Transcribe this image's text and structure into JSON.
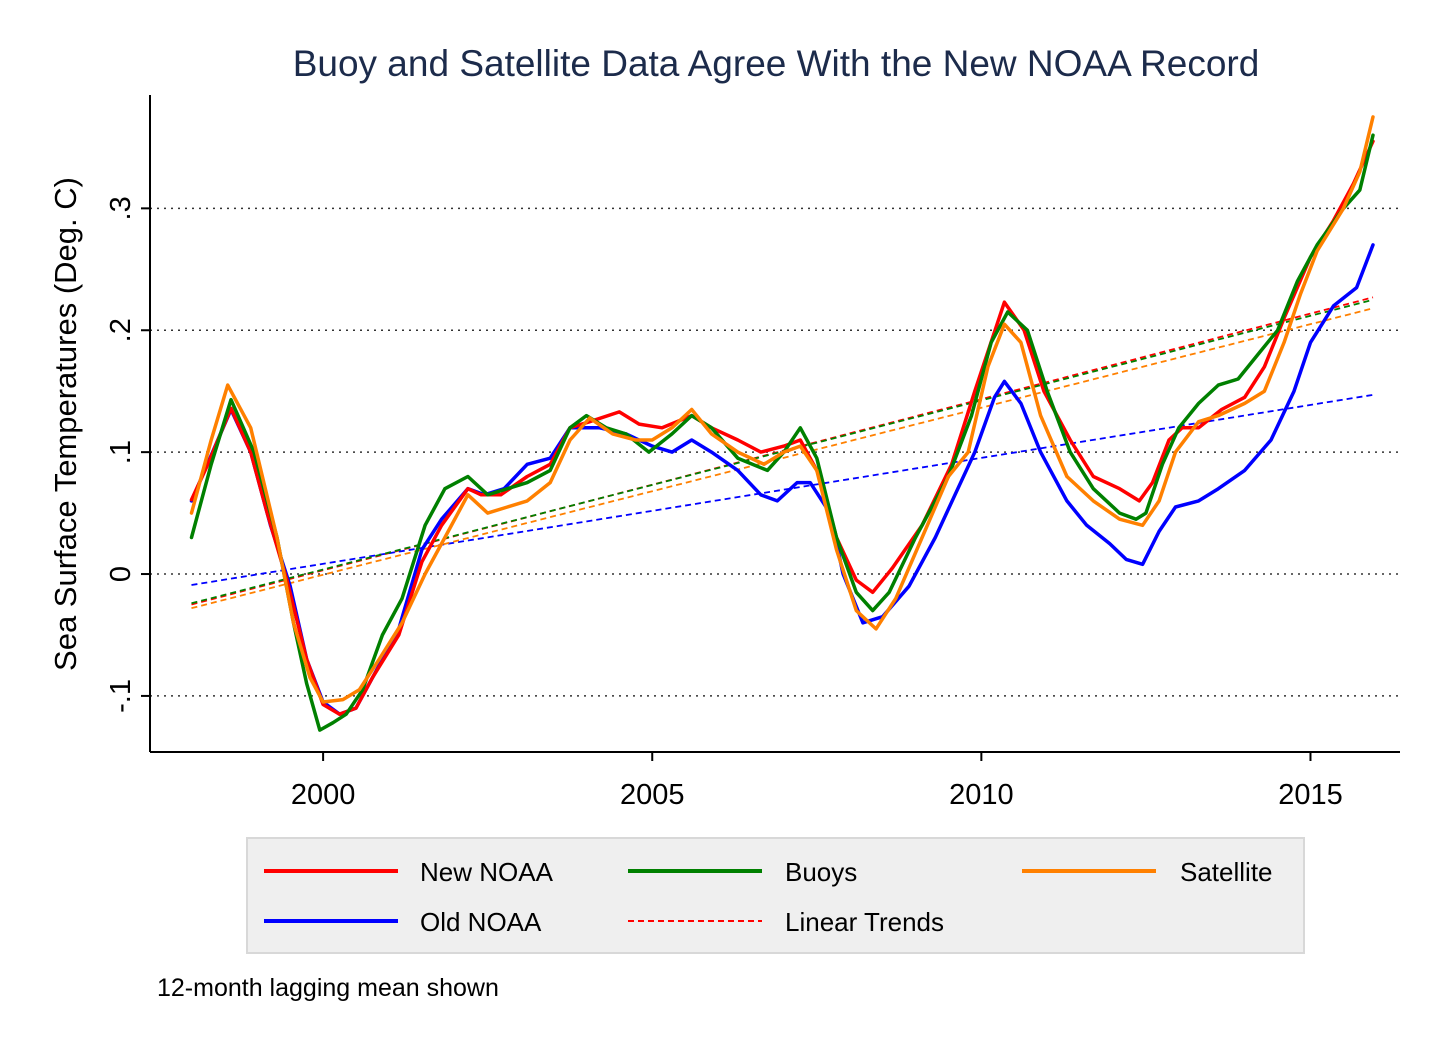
{
  "chart_data": {
    "type": "line",
    "title": "Buoy and Satellite Data Agree With the New NOAA Record",
    "xlabel": "",
    "ylabel": "Sea Surface Temperatures (Deg. C)",
    "note": "12-month lagging mean shown",
    "xlim": [
      1997.37,
      2016.36
    ],
    "ylim": [
      -0.146,
      0.393
    ],
    "x_ticks": [
      2000,
      2005,
      2010,
      2015
    ],
    "x_tick_labels": [
      "2000",
      "2005",
      "2010",
      "2015"
    ],
    "y_ticks": [
      -0.1,
      0,
      0.1,
      0.2,
      0.3
    ],
    "y_tick_labels": [
      "-.1",
      "0",
      ".1",
      ".2",
      ".3"
    ],
    "grid": "horizontal dotted",
    "legend_placement": "bottom",
    "legend_trend_label": "Linear Trends",
    "series": [
      {
        "name": "New NOAA",
        "color": "#ff0000",
        "points": [
          [
            1998.0,
            0.061
          ],
          [
            1998.25,
            0.09
          ],
          [
            1998.6,
            0.136
          ],
          [
            1998.9,
            0.1
          ],
          [
            1999.15,
            0.05
          ],
          [
            1999.45,
            -0.005
          ],
          [
            1999.75,
            -0.07
          ],
          [
            2000.0,
            -0.107
          ],
          [
            2000.25,
            -0.115
          ],
          [
            2000.5,
            -0.11
          ],
          [
            2000.75,
            -0.085
          ],
          [
            2001.15,
            -0.05
          ],
          [
            2001.5,
            0.01
          ],
          [
            2001.8,
            0.04
          ],
          [
            2002.2,
            0.07
          ],
          [
            2002.4,
            0.065
          ],
          [
            2002.7,
            0.065
          ],
          [
            2003.1,
            0.08
          ],
          [
            2003.45,
            0.09
          ],
          [
            2003.75,
            0.12
          ],
          [
            2004.05,
            0.125
          ],
          [
            2004.5,
            0.133
          ],
          [
            2004.8,
            0.123
          ],
          [
            2005.15,
            0.12
          ],
          [
            2005.6,
            0.13
          ],
          [
            2005.9,
            0.12
          ],
          [
            2006.3,
            0.11
          ],
          [
            2006.65,
            0.1
          ],
          [
            2007.0,
            0.105
          ],
          [
            2007.25,
            0.11
          ],
          [
            2007.55,
            0.08
          ],
          [
            2007.8,
            0.03
          ],
          [
            2008.1,
            -0.005
          ],
          [
            2008.35,
            -0.015
          ],
          [
            2008.65,
            0.005
          ],
          [
            2009.1,
            0.04
          ],
          [
            2009.55,
            0.09
          ],
          [
            2009.9,
            0.15
          ],
          [
            2010.35,
            0.223
          ],
          [
            2010.65,
            0.2
          ],
          [
            2010.95,
            0.15
          ],
          [
            2011.35,
            0.11
          ],
          [
            2011.7,
            0.08
          ],
          [
            2012.1,
            0.07
          ],
          [
            2012.4,
            0.06
          ],
          [
            2012.6,
            0.075
          ],
          [
            2012.85,
            0.11
          ],
          [
            2013.05,
            0.12
          ],
          [
            2013.3,
            0.12
          ],
          [
            2013.65,
            0.135
          ],
          [
            2014.0,
            0.145
          ],
          [
            2014.3,
            0.17
          ],
          [
            2014.6,
            0.21
          ],
          [
            2015.0,
            0.26
          ],
          [
            2015.35,
            0.29
          ],
          [
            2015.65,
            0.32
          ],
          [
            2015.95,
            0.355
          ]
        ],
        "trend": [
          [
            1998.0,
            -0.025
          ],
          [
            2015.95,
            0.227
          ]
        ]
      },
      {
        "name": "Old NOAA",
        "color": "#0000ff",
        "points": [
          [
            1998.0,
            0.06
          ],
          [
            1998.6,
            0.135
          ],
          [
            1998.9,
            0.1
          ],
          [
            1999.2,
            0.04
          ],
          [
            1999.5,
            -0.01
          ],
          [
            1999.75,
            -0.07
          ],
          [
            2000.0,
            -0.105
          ],
          [
            2000.25,
            -0.115
          ],
          [
            2000.5,
            -0.11
          ],
          [
            2000.8,
            -0.08
          ],
          [
            2001.15,
            -0.045
          ],
          [
            2001.5,
            0.02
          ],
          [
            2001.8,
            0.045
          ],
          [
            2002.2,
            0.07
          ],
          [
            2002.45,
            0.065
          ],
          [
            2002.75,
            0.07
          ],
          [
            2003.1,
            0.09
          ],
          [
            2003.45,
            0.095
          ],
          [
            2003.75,
            0.12
          ],
          [
            2004.2,
            0.12
          ],
          [
            2004.6,
            0.115
          ],
          [
            2005.0,
            0.105
          ],
          [
            2005.3,
            0.1
          ],
          [
            2005.6,
            0.11
          ],
          [
            2005.9,
            0.1
          ],
          [
            2006.3,
            0.085
          ],
          [
            2006.65,
            0.065
          ],
          [
            2006.9,
            0.06
          ],
          [
            2007.2,
            0.075
          ],
          [
            2007.4,
            0.075
          ],
          [
            2007.7,
            0.05
          ],
          [
            2007.9,
            0.0
          ],
          [
            2008.2,
            -0.04
          ],
          [
            2008.5,
            -0.035
          ],
          [
            2008.9,
            -0.01
          ],
          [
            2009.3,
            0.03
          ],
          [
            2009.6,
            0.065
          ],
          [
            2009.9,
            0.1
          ],
          [
            2010.2,
            0.145
          ],
          [
            2010.35,
            0.158
          ],
          [
            2010.6,
            0.14
          ],
          [
            2010.9,
            0.1
          ],
          [
            2011.3,
            0.06
          ],
          [
            2011.6,
            0.04
          ],
          [
            2011.95,
            0.025
          ],
          [
            2012.2,
            0.012
          ],
          [
            2012.45,
            0.008
          ],
          [
            2012.7,
            0.035
          ],
          [
            2012.95,
            0.055
          ],
          [
            2013.3,
            0.06
          ],
          [
            2013.6,
            0.07
          ],
          [
            2014.0,
            0.085
          ],
          [
            2014.4,
            0.11
          ],
          [
            2014.75,
            0.15
          ],
          [
            2015.0,
            0.19
          ],
          [
            2015.35,
            0.22
          ],
          [
            2015.7,
            0.235
          ],
          [
            2015.95,
            0.27
          ]
        ],
        "trend": [
          [
            1998.0,
            -0.009
          ],
          [
            2015.95,
            0.147
          ]
        ]
      },
      {
        "name": "Buoys",
        "color": "#008000",
        "points": [
          [
            1998.0,
            0.03
          ],
          [
            1998.3,
            0.09
          ],
          [
            1998.6,
            0.143
          ],
          [
            1998.95,
            0.1
          ],
          [
            1999.3,
            0.03
          ],
          [
            1999.55,
            -0.04
          ],
          [
            1999.75,
            -0.09
          ],
          [
            1999.95,
            -0.128
          ],
          [
            2000.15,
            -0.122
          ],
          [
            2000.35,
            -0.115
          ],
          [
            2000.6,
            -0.095
          ],
          [
            2000.9,
            -0.05
          ],
          [
            2001.2,
            -0.02
          ],
          [
            2001.55,
            0.04
          ],
          [
            2001.85,
            0.07
          ],
          [
            2002.2,
            0.08
          ],
          [
            2002.5,
            0.065
          ],
          [
            2002.8,
            0.07
          ],
          [
            2003.1,
            0.075
          ],
          [
            2003.45,
            0.085
          ],
          [
            2003.75,
            0.12
          ],
          [
            2004.0,
            0.13
          ],
          [
            2004.3,
            0.12
          ],
          [
            2004.6,
            0.115
          ],
          [
            2004.95,
            0.1
          ],
          [
            2005.3,
            0.115
          ],
          [
            2005.6,
            0.13
          ],
          [
            2005.9,
            0.12
          ],
          [
            2006.3,
            0.095
          ],
          [
            2006.75,
            0.085
          ],
          [
            2007.0,
            0.1
          ],
          [
            2007.25,
            0.12
          ],
          [
            2007.5,
            0.095
          ],
          [
            2007.8,
            0.03
          ],
          [
            2008.1,
            -0.015
          ],
          [
            2008.35,
            -0.03
          ],
          [
            2008.6,
            -0.015
          ],
          [
            2009.0,
            0.03
          ],
          [
            2009.5,
            0.08
          ],
          [
            2009.85,
            0.13
          ],
          [
            2010.15,
            0.19
          ],
          [
            2010.4,
            0.215
          ],
          [
            2010.7,
            0.2
          ],
          [
            2011.0,
            0.15
          ],
          [
            2011.35,
            0.1
          ],
          [
            2011.7,
            0.07
          ],
          [
            2012.1,
            0.05
          ],
          [
            2012.35,
            0.045
          ],
          [
            2012.5,
            0.05
          ],
          [
            2012.75,
            0.09
          ],
          [
            2013.0,
            0.12
          ],
          [
            2013.3,
            0.14
          ],
          [
            2013.6,
            0.155
          ],
          [
            2013.9,
            0.16
          ],
          [
            2014.2,
            0.18
          ],
          [
            2014.5,
            0.2
          ],
          [
            2014.8,
            0.24
          ],
          [
            2015.1,
            0.27
          ],
          [
            2015.5,
            0.3
          ],
          [
            2015.75,
            0.315
          ],
          [
            2015.95,
            0.36
          ]
        ],
        "trend": [
          [
            1998.0,
            -0.024
          ],
          [
            2015.95,
            0.225
          ]
        ]
      },
      {
        "name": "Satellite",
        "color": "#ff8000",
        "points": [
          [
            1998.0,
            0.05
          ],
          [
            1998.3,
            0.11
          ],
          [
            1998.55,
            0.155
          ],
          [
            1998.9,
            0.12
          ],
          [
            1999.3,
            0.03
          ],
          [
            1999.55,
            -0.04
          ],
          [
            1999.8,
            -0.085
          ],
          [
            2000.0,
            -0.105
          ],
          [
            2000.3,
            -0.103
          ],
          [
            2000.55,
            -0.095
          ],
          [
            2000.85,
            -0.07
          ],
          [
            2001.2,
            -0.04
          ],
          [
            2001.55,
            0.0
          ],
          [
            2001.85,
            0.03
          ],
          [
            2002.2,
            0.065
          ],
          [
            2002.5,
            0.05
          ],
          [
            2002.8,
            0.055
          ],
          [
            2003.1,
            0.06
          ],
          [
            2003.45,
            0.075
          ],
          [
            2003.75,
            0.11
          ],
          [
            2004.05,
            0.128
          ],
          [
            2004.4,
            0.115
          ],
          [
            2004.75,
            0.11
          ],
          [
            2005.0,
            0.11
          ],
          [
            2005.3,
            0.12
          ],
          [
            2005.6,
            0.135
          ],
          [
            2005.9,
            0.115
          ],
          [
            2006.3,
            0.1
          ],
          [
            2006.7,
            0.09
          ],
          [
            2007.0,
            0.1
          ],
          [
            2007.25,
            0.105
          ],
          [
            2007.5,
            0.085
          ],
          [
            2007.8,
            0.02
          ],
          [
            2008.1,
            -0.03
          ],
          [
            2008.4,
            -0.045
          ],
          [
            2008.7,
            -0.02
          ],
          [
            2009.1,
            0.03
          ],
          [
            2009.5,
            0.08
          ],
          [
            2009.8,
            0.1
          ],
          [
            2010.1,
            0.17
          ],
          [
            2010.35,
            0.205
          ],
          [
            2010.6,
            0.19
          ],
          [
            2010.9,
            0.13
          ],
          [
            2011.3,
            0.08
          ],
          [
            2011.7,
            0.06
          ],
          [
            2012.1,
            0.045
          ],
          [
            2012.45,
            0.04
          ],
          [
            2012.7,
            0.06
          ],
          [
            2012.95,
            0.1
          ],
          [
            2013.3,
            0.125
          ],
          [
            2013.6,
            0.13
          ],
          [
            2014.0,
            0.14
          ],
          [
            2014.3,
            0.15
          ],
          [
            2014.6,
            0.19
          ],
          [
            2014.85,
            0.23
          ],
          [
            2015.1,
            0.265
          ],
          [
            2015.5,
            0.3
          ],
          [
            2015.75,
            0.33
          ],
          [
            2015.95,
            0.375
          ]
        ],
        "trend": [
          [
            1998.0,
            -0.028
          ],
          [
            2015.95,
            0.218
          ]
        ]
      }
    ]
  }
}
